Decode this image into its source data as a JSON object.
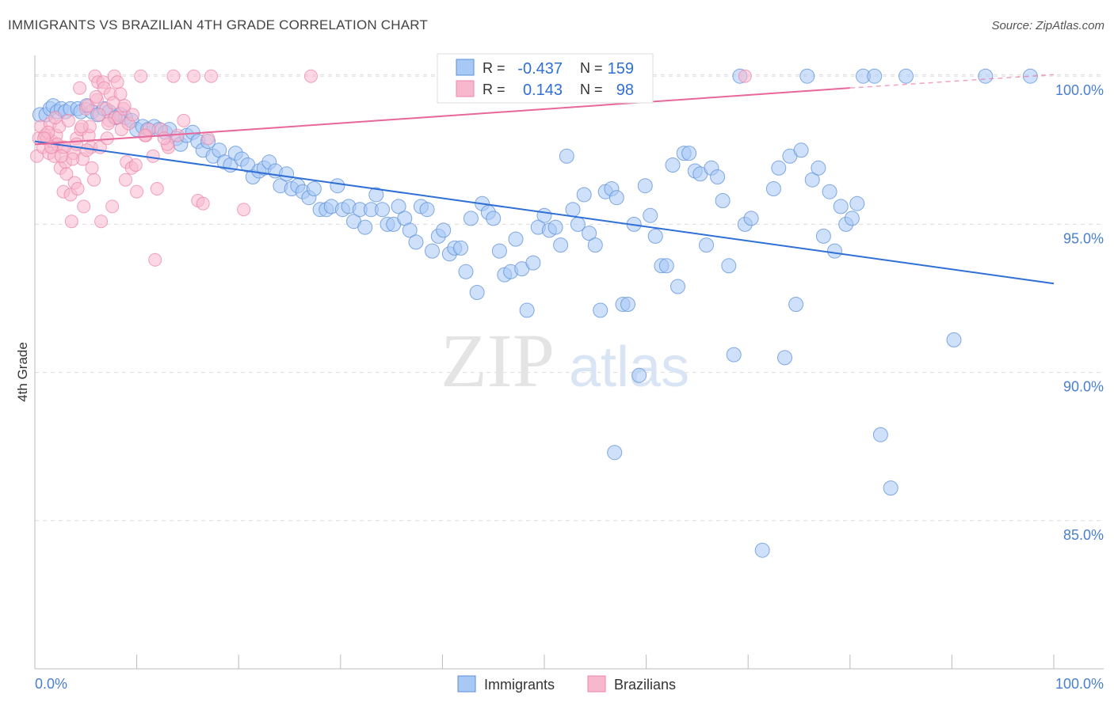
{
  "title": "IMMIGRANTS VS BRAZILIAN 4TH GRADE CORRELATION CHART",
  "source": "Source: ZipAtlas.com",
  "watermark": {
    "zip": "ZIP",
    "atlas": "atlas"
  },
  "colors": {
    "immigrants_fill": "#a8c8f5",
    "immigrants_stroke": "#5b8fd8",
    "immigrants_line": "#2f6fd6",
    "brazilians_fill": "#f7b8cd",
    "brazilians_stroke": "#ec86a8",
    "brazilians_line": "#e8679a",
    "tick_text": "#4a7fd0",
    "grid": "#dddddd"
  },
  "legend_top": {
    "rows": [
      {
        "r_label": "R =",
        "r_value": "-0.437",
        "n_label": "N =",
        "n_value": "159"
      },
      {
        "r_label": "R =",
        "r_value": "0.143",
        "n_label": "N =",
        "n_value": "98"
      }
    ]
  },
  "chart_data": {
    "type": "scatter",
    "title": "IMMIGRANTS VS BRAZILIAN 4TH GRADE CORRELATION CHART",
    "xlabel": "",
    "ylabel": "4th Grade",
    "xlim": [
      0,
      100
    ],
    "ylim": [
      80,
      100.7
    ],
    "x_tick_labels": [
      "0.0%",
      "100.0%"
    ],
    "y_ticks": [
      85,
      90,
      95,
      100
    ],
    "y_tick_labels": [
      "85.0%",
      "90.0%",
      "95.0%",
      "100.0%"
    ],
    "legend": [
      "Immigrants",
      "Brazilians"
    ],
    "series": [
      {
        "name": "Immigrants",
        "trend": {
          "x0": 0.0,
          "y0": 97.8,
          "x1": 100.0,
          "y1": 93.0
        },
        "points": [
          [
            0.5,
            98.7
          ],
          [
            1.1,
            98.7
          ],
          [
            1.5,
            98.9
          ],
          [
            1.8,
            99.0
          ],
          [
            2.2,
            98.8
          ],
          [
            2.6,
            98.9
          ],
          [
            3.0,
            98.8
          ],
          [
            3.5,
            98.9
          ],
          [
            4.2,
            98.9
          ],
          [
            4.5,
            98.8
          ],
          [
            5.1,
            99.0
          ],
          [
            5.6,
            98.8
          ],
          [
            6.2,
            98.7
          ],
          [
            6.8,
            98.9
          ],
          [
            7.3,
            98.8
          ],
          [
            7.9,
            98.6
          ],
          [
            8.4,
            98.7
          ],
          [
            8.9,
            98.6
          ],
          [
            9.5,
            98.5
          ],
          [
            10.0,
            98.2
          ],
          [
            10.6,
            98.3
          ],
          [
            11.1,
            98.2
          ],
          [
            11.7,
            98.3
          ],
          [
            12.2,
            98.2
          ],
          [
            12.8,
            98.1
          ],
          [
            13.2,
            98.2
          ],
          [
            13.9,
            97.9
          ],
          [
            14.3,
            97.7
          ],
          [
            14.9,
            98.0
          ],
          [
            15.5,
            98.1
          ],
          [
            16.0,
            97.8
          ],
          [
            16.5,
            97.5
          ],
          [
            17.0,
            97.8
          ],
          [
            17.5,
            97.3
          ],
          [
            18.1,
            97.5
          ],
          [
            18.6,
            97.1
          ],
          [
            19.2,
            97.0
          ],
          [
            19.7,
            97.4
          ],
          [
            20.3,
            97.2
          ],
          [
            20.9,
            97.0
          ],
          [
            21.4,
            96.6
          ],
          [
            22.0,
            96.8
          ],
          [
            22.5,
            96.9
          ],
          [
            23.0,
            97.1
          ],
          [
            23.6,
            96.8
          ],
          [
            24.1,
            96.3
          ],
          [
            24.7,
            96.7
          ],
          [
            25.2,
            96.2
          ],
          [
            25.8,
            96.3
          ],
          [
            26.3,
            96.1
          ],
          [
            26.9,
            95.9
          ],
          [
            27.4,
            96.2
          ],
          [
            28.0,
            95.5
          ],
          [
            28.6,
            95.5
          ],
          [
            29.1,
            95.6
          ],
          [
            29.7,
            96.3
          ],
          [
            30.2,
            95.5
          ],
          [
            30.8,
            95.6
          ],
          [
            31.3,
            95.1
          ],
          [
            31.9,
            95.5
          ],
          [
            32.4,
            94.9
          ],
          [
            33.0,
            95.5
          ],
          [
            33.5,
            96.0
          ],
          [
            34.1,
            95.5
          ],
          [
            34.6,
            95.0
          ],
          [
            35.2,
            95.0
          ],
          [
            35.7,
            95.6
          ],
          [
            36.3,
            95.2
          ],
          [
            36.8,
            94.8
          ],
          [
            37.4,
            94.4
          ],
          [
            37.9,
            95.6
          ],
          [
            38.5,
            95.5
          ],
          [
            39.0,
            94.1
          ],
          [
            39.6,
            94.6
          ],
          [
            40.1,
            94.8
          ],
          [
            40.7,
            94.0
          ],
          [
            41.2,
            94.2
          ],
          [
            41.8,
            94.2
          ],
          [
            42.3,
            93.4
          ],
          [
            42.8,
            95.2
          ],
          [
            43.4,
            92.7
          ],
          [
            43.9,
            95.7
          ],
          [
            44.5,
            95.4
          ],
          [
            45.0,
            95.2
          ],
          [
            45.6,
            94.1
          ],
          [
            46.1,
            93.3
          ],
          [
            46.7,
            93.4
          ],
          [
            47.2,
            94.5
          ],
          [
            47.8,
            93.5
          ],
          [
            48.3,
            92.1
          ],
          [
            48.9,
            93.7
          ],
          [
            49.4,
            94.9
          ],
          [
            50.0,
            95.3
          ],
          [
            50.5,
            94.8
          ],
          [
            51.1,
            94.9
          ],
          [
            51.6,
            94.3
          ],
          [
            52.2,
            97.3
          ],
          [
            52.8,
            95.5
          ],
          [
            53.3,
            95.0
          ],
          [
            53.9,
            96.0
          ],
          [
            54.4,
            94.7
          ],
          [
            55.0,
            94.3
          ],
          [
            55.5,
            92.1
          ],
          [
            56.0,
            96.1
          ],
          [
            56.6,
            96.2
          ],
          [
            57.1,
            95.9
          ],
          [
            57.7,
            92.3
          ],
          [
            58.2,
            92.3
          ],
          [
            58.8,
            95.0
          ],
          [
            59.3,
            89.9
          ],
          [
            59.9,
            96.3
          ],
          [
            60.4,
            95.3
          ],
          [
            60.9,
            94.6
          ],
          [
            61.5,
            93.6
          ],
          [
            62.0,
            93.6
          ],
          [
            62.6,
            97.0
          ],
          [
            63.1,
            92.9
          ],
          [
            63.7,
            97.4
          ],
          [
            64.2,
            97.4
          ],
          [
            64.8,
            96.8
          ],
          [
            65.3,
            96.7
          ],
          [
            65.9,
            94.3
          ],
          [
            66.4,
            96.9
          ],
          [
            67.0,
            96.6
          ],
          [
            67.5,
            95.8
          ],
          [
            68.1,
            93.6
          ],
          [
            68.6,
            90.6
          ],
          [
            69.2,
            100.0
          ],
          [
            69.7,
            95.0
          ],
          [
            70.3,
            95.2
          ],
          [
            56.9,
            87.3
          ],
          [
            71.4,
            84.0
          ],
          [
            72.5,
            96.2
          ],
          [
            73.0,
            96.9
          ],
          [
            73.6,
            90.5
          ],
          [
            74.1,
            97.3
          ],
          [
            74.7,
            92.3
          ],
          [
            75.2,
            97.5
          ],
          [
            75.8,
            100.0
          ],
          [
            76.3,
            96.5
          ],
          [
            76.9,
            96.9
          ],
          [
            77.4,
            94.6
          ],
          [
            78.0,
            96.1
          ],
          [
            78.5,
            94.1
          ],
          [
            79.1,
            95.6
          ],
          [
            79.6,
            95.0
          ],
          [
            80.2,
            95.2
          ],
          [
            80.7,
            95.7
          ],
          [
            81.3,
            100.0
          ],
          [
            82.4,
            100.0
          ],
          [
            83.0,
            87.9
          ],
          [
            84.0,
            86.1
          ],
          [
            85.5,
            100.0
          ],
          [
            90.2,
            91.1
          ],
          [
            93.3,
            100.0
          ],
          [
            97.7,
            100.0
          ]
        ]
      },
      {
        "name": "Brazilians",
        "trend": {
          "x0": 0.0,
          "y0": 97.7,
          "x1": 80.0,
          "y1": 99.6
        },
        "trend_dashed": {
          "x0": 80.0,
          "y0": 99.6,
          "x1": 100.0,
          "y1": 100.05
        },
        "points": [
          [
            0.2,
            97.3
          ],
          [
            0.4,
            97.9
          ],
          [
            0.6,
            98.3
          ],
          [
            0.8,
            97.6
          ],
          [
            1.0,
            98.0
          ],
          [
            1.2,
            97.9
          ],
          [
            1.4,
            97.4
          ],
          [
            1.5,
            98.4
          ],
          [
            1.7,
            97.8
          ],
          [
            1.9,
            97.3
          ],
          [
            2.1,
            98.0
          ],
          [
            2.2,
            97.7
          ],
          [
            2.4,
            98.3
          ],
          [
            2.5,
            96.9
          ],
          [
            2.7,
            97.6
          ],
          [
            2.8,
            96.1
          ],
          [
            3.0,
            97.1
          ],
          [
            3.1,
            96.7
          ],
          [
            3.3,
            98.5
          ],
          [
            3.5,
            96.0
          ],
          [
            3.6,
            95.1
          ],
          [
            3.8,
            97.4
          ],
          [
            3.9,
            96.4
          ],
          [
            4.1,
            97.9
          ],
          [
            4.2,
            96.2
          ],
          [
            4.4,
            99.6
          ],
          [
            4.5,
            98.2
          ],
          [
            4.7,
            97.2
          ],
          [
            4.8,
            95.6
          ],
          [
            5.0,
            98.9
          ],
          [
            5.2,
            99.0
          ],
          [
            5.3,
            98.0
          ],
          [
            5.5,
            97.6
          ],
          [
            5.6,
            96.9
          ],
          [
            5.8,
            96.5
          ],
          [
            5.9,
            100.0
          ],
          [
            6.1,
            99.2
          ],
          [
            6.2,
            99.8
          ],
          [
            6.4,
            97.6
          ],
          [
            6.5,
            95.1
          ],
          [
            6.7,
            99.8
          ],
          [
            6.8,
            99.6
          ],
          [
            7.0,
            98.9
          ],
          [
            7.1,
            97.9
          ],
          [
            7.3,
            98.5
          ],
          [
            7.4,
            99.4
          ],
          [
            7.6,
            95.6
          ],
          [
            7.8,
            100.0
          ],
          [
            7.9,
            98.6
          ],
          [
            8.1,
            99.8
          ],
          [
            8.2,
            98.6
          ],
          [
            8.4,
            99.4
          ],
          [
            8.5,
            98.2
          ],
          [
            8.7,
            98.9
          ],
          [
            8.9,
            96.5
          ],
          [
            9.0,
            97.1
          ],
          [
            9.2,
            98.4
          ],
          [
            9.5,
            96.9
          ],
          [
            10.0,
            96.1
          ],
          [
            10.4,
            100.0
          ],
          [
            10.9,
            98.0
          ],
          [
            11.2,
            98.2
          ],
          [
            11.6,
            97.3
          ],
          [
            12.0,
            96.2
          ],
          [
            12.4,
            98.2
          ],
          [
            13.1,
            97.6
          ],
          [
            13.6,
            100.0
          ],
          [
            15.6,
            100.0
          ],
          [
            17.3,
            100.0
          ],
          [
            4.1,
            97.7
          ],
          [
            6.3,
            98.7
          ],
          [
            7.7,
            99.1
          ],
          [
            10.8,
            98.0
          ],
          [
            11.8,
            93.8
          ],
          [
            14.6,
            98.5
          ],
          [
            16.0,
            95.8
          ],
          [
            16.5,
            95.7
          ],
          [
            17.0,
            97.9
          ],
          [
            20.5,
            95.5
          ],
          [
            27.1,
            100.0
          ],
          [
            69.7,
            100.0
          ],
          [
            5.4,
            98.3
          ],
          [
            2.9,
            97.6
          ],
          [
            1.3,
            98.1
          ],
          [
            3.7,
            97.2
          ],
          [
            4.6,
            98.3
          ],
          [
            6.0,
            99.3
          ],
          [
            8.8,
            99.0
          ],
          [
            9.6,
            98.7
          ],
          [
            13.0,
            97.7
          ],
          [
            2.0,
            98.6
          ],
          [
            0.9,
            97.9
          ],
          [
            1.6,
            97.6
          ],
          [
            2.6,
            97.3
          ],
          [
            5.1,
            97.5
          ],
          [
            7.2,
            98.4
          ],
          [
            9.9,
            97.0
          ],
          [
            12.7,
            97.9
          ],
          [
            14.0,
            98.0
          ]
        ]
      }
    ]
  }
}
